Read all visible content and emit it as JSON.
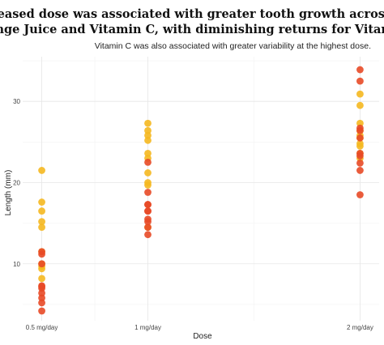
{
  "chart_data": {
    "type": "scatter",
    "title_line1": "Increased dose was associated with greater tooth growth across both",
    "title_line2": "Orange Juice and Vitamin C, with diminishing returns for Vitamin C.",
    "subtitle": "Vitamin C was also associated with greater variability at the highest dose.",
    "xlabel": "Dose",
    "ylabel": "Length (mm)",
    "x": [
      0.5,
      1,
      2
    ],
    "x_tick_labels": [
      "0.5 mg/day",
      "1 mg/day",
      "2 mg/day"
    ],
    "xlim": [
      0.41,
      2.09
    ],
    "ylim": [
      3.0,
      35.5
    ],
    "y_ticks": [
      10,
      20,
      30
    ],
    "grid": true,
    "series": [
      {
        "color": "#f5b820",
        "points": [
          [
            0.5,
            21.5
          ],
          [
            0.5,
            17.6
          ],
          [
            0.5,
            16.5
          ],
          [
            0.5,
            15.2
          ],
          [
            0.5,
            14.5
          ],
          [
            0.5,
            10.0
          ],
          [
            0.5,
            9.7
          ],
          [
            0.5,
            9.4
          ],
          [
            0.5,
            8.2
          ],
          [
            0.5,
            11.5
          ],
          [
            1,
            27.3
          ],
          [
            1,
            26.4
          ],
          [
            1,
            25.8
          ],
          [
            1,
            25.2
          ],
          [
            1,
            23.6
          ],
          [
            1,
            23.0
          ],
          [
            1,
            21.2
          ],
          [
            1,
            20.0
          ],
          [
            1,
            19.7
          ],
          [
            1,
            14.5
          ],
          [
            2,
            30.9
          ],
          [
            2,
            29.5
          ],
          [
            2,
            27.3
          ],
          [
            2,
            26.4
          ],
          [
            2,
            25.8
          ],
          [
            2,
            25.5
          ],
          [
            2,
            24.8
          ],
          [
            2,
            24.5
          ],
          [
            2,
            23.6
          ],
          [
            2,
            23.0
          ]
        ]
      },
      {
        "color": "#e84a27",
        "points": [
          [
            0.5,
            11.5
          ],
          [
            0.5,
            11.2
          ],
          [
            0.5,
            10.0
          ],
          [
            0.5,
            7.3
          ],
          [
            0.5,
            7.0
          ],
          [
            0.5,
            6.4
          ],
          [
            0.5,
            5.8
          ],
          [
            0.5,
            5.2
          ],
          [
            0.5,
            4.2
          ],
          [
            0.5,
            7.2
          ],
          [
            1,
            22.5
          ],
          [
            1,
            18.8
          ],
          [
            1,
            17.3
          ],
          [
            1,
            16.5
          ],
          [
            1,
            16.5
          ],
          [
            1,
            15.5
          ],
          [
            1,
            15.2
          ],
          [
            1,
            14.5
          ],
          [
            1,
            13.6
          ],
          [
            1,
            17.3
          ],
          [
            2,
            33.9
          ],
          [
            2,
            32.5
          ],
          [
            2,
            26.7
          ],
          [
            2,
            26.4
          ],
          [
            2,
            25.5
          ],
          [
            2,
            23.6
          ],
          [
            2,
            23.3
          ],
          [
            2,
            22.4
          ],
          [
            2,
            21.5
          ],
          [
            2,
            18.5
          ]
        ]
      }
    ]
  }
}
